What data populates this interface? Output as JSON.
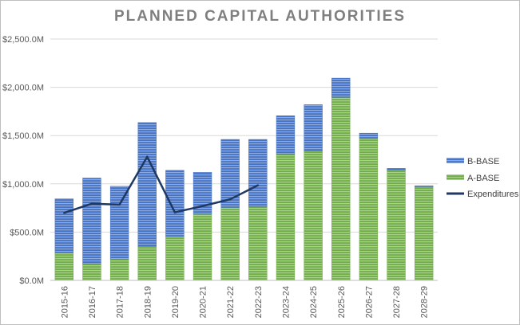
{
  "chart_data": {
    "type": "bar",
    "title": "PLANNED CAPITAL AUTHORITIES",
    "xlabel": "",
    "ylabel": "",
    "ylim": [
      0,
      2500
    ],
    "y_ticks": [
      "$0.0M",
      "$500.0M",
      "$1,000.0M",
      "$1,500.0M",
      "$2,000.0M",
      "$2,500.0M"
    ],
    "y_tick_values": [
      0,
      500,
      1000,
      1500,
      2000,
      2500
    ],
    "stacked": true,
    "grid": true,
    "legend_position": "right",
    "categories": [
      "2015-16",
      "2016-17",
      "2017-18",
      "2018-19",
      "2019-20",
      "2020-21",
      "2021-22",
      "2022-23",
      "2023-24",
      "2024-25",
      "2025-26",
      "2026-27",
      "2027-28",
      "2028-29"
    ],
    "series": [
      {
        "name": "A-BASE",
        "type": "bar",
        "color": "#70ad47",
        "values": [
          285,
          170,
          220,
          350,
          455,
          690,
          755,
          760,
          1305,
          1340,
          1895,
          1470,
          1140,
          970
        ]
      },
      {
        "name": "B-BASE",
        "type": "bar",
        "color": "#4472c4",
        "values": [
          560,
          890,
          755,
          1285,
          685,
          430,
          705,
          700,
          400,
          480,
          200,
          55,
          20,
          10
        ]
      },
      {
        "name": "Expenditures",
        "type": "line",
        "color": "#1f3864",
        "values": [
          700,
          795,
          785,
          1280,
          705,
          770,
          840,
          985,
          null,
          null,
          null,
          null,
          null,
          null
        ]
      }
    ]
  }
}
